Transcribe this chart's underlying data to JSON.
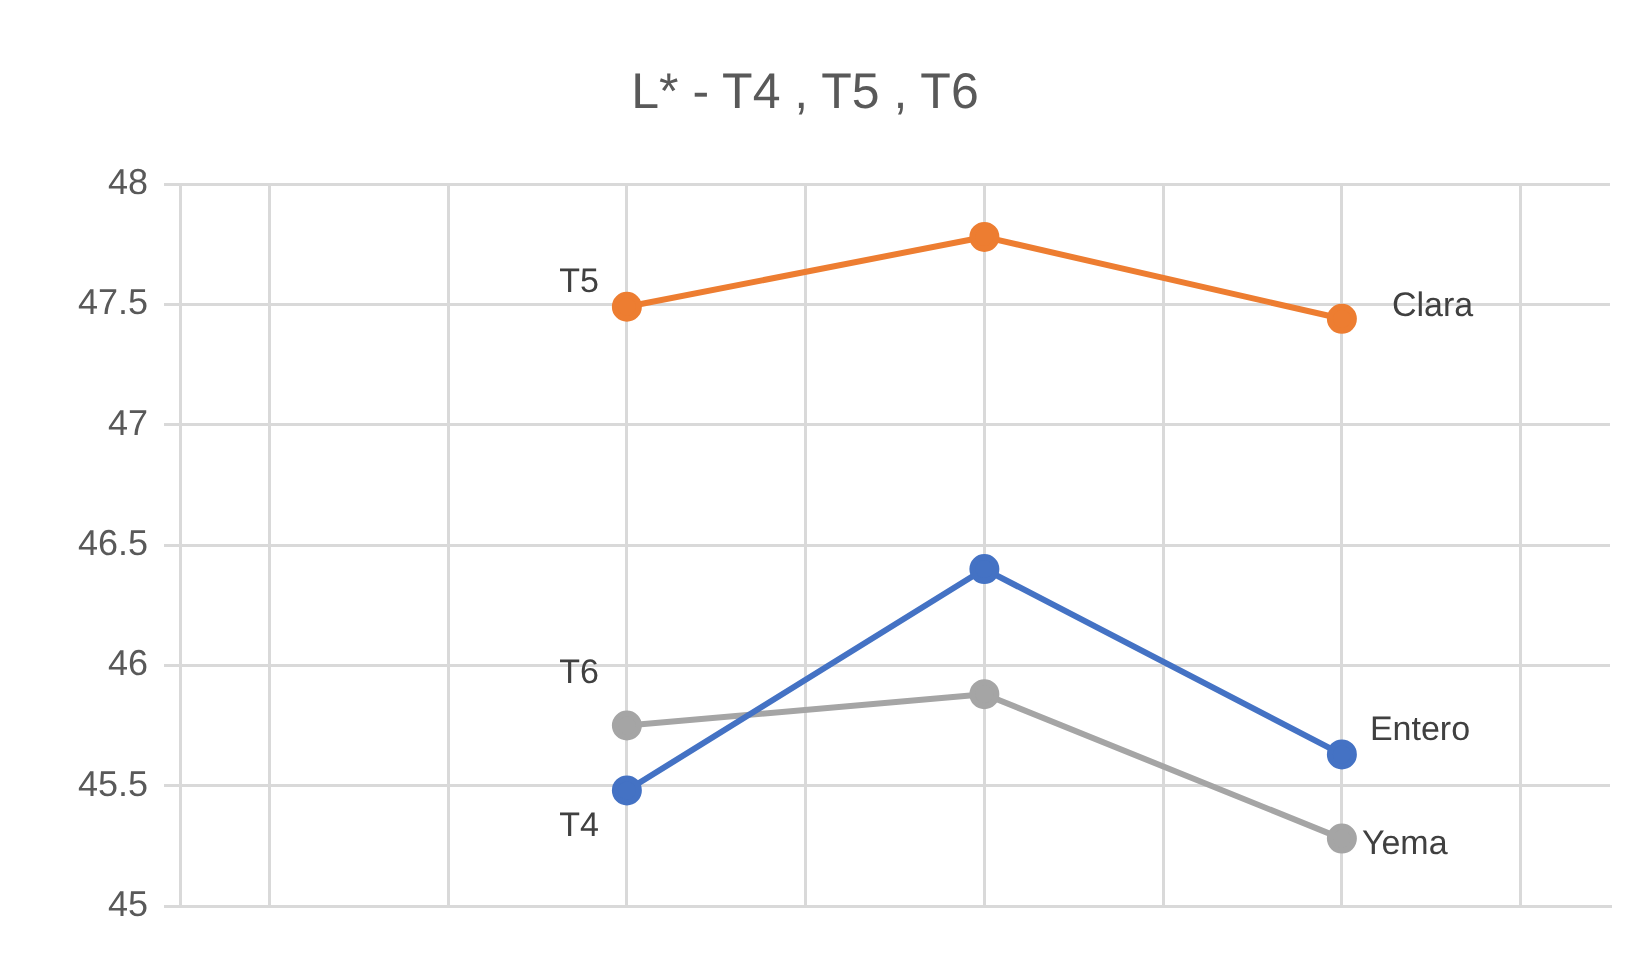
{
  "chart_data": {
    "type": "line",
    "title": "L* - T4 , T5 , T6",
    "categories": [
      null,
      null,
      null,
      null,
      null,
      null,
      null,
      null
    ],
    "series": [
      {
        "name": "T4",
        "color": "#4472c4",
        "values": [
          null,
          null,
          45.48,
          null,
          46.4,
          null,
          45.63,
          null
        ]
      },
      {
        "name": "T5",
        "color": "#ed7d31",
        "values": [
          null,
          null,
          47.49,
          null,
          47.78,
          null,
          47.44,
          null
        ]
      },
      {
        "name": "T6",
        "color": "#a5a5a5",
        "values": [
          null,
          null,
          45.75,
          null,
          45.88,
          null,
          45.28,
          null
        ]
      }
    ],
    "annotations": [
      "Clara",
      "Entero",
      "Yema"
    ],
    "ylim": [
      45,
      48
    ],
    "yticks": [
      45,
      45.5,
      46,
      46.5,
      47,
      47.5,
      48
    ],
    "grid": true,
    "legend": false,
    "marker": "circle",
    "line_style": "solid",
    "tick_labels": "y"
  }
}
